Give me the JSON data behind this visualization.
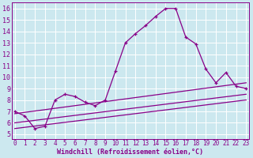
{
  "bg_color": "#cce8ef",
  "line_color": "#880088",
  "grid_color": "#ffffff",
  "xlabel": "Windchill (Refroidissement éolien,°C)",
  "xlabel_color": "#880088",
  "xticks": [
    0,
    1,
    2,
    3,
    4,
    5,
    6,
    7,
    8,
    9,
    10,
    11,
    12,
    13,
    14,
    15,
    16,
    17,
    18,
    19,
    20,
    21,
    22,
    23
  ],
  "yticks": [
    5,
    6,
    7,
    8,
    9,
    10,
    11,
    12,
    13,
    14,
    15,
    16
  ],
  "xlim": [
    -0.3,
    23.3
  ],
  "ylim": [
    4.6,
    16.5
  ],
  "series1_x": [
    0,
    1,
    2,
    3,
    4,
    5,
    6,
    7,
    8,
    9,
    10,
    11,
    12,
    13,
    14,
    15,
    16,
    17,
    18,
    19,
    20,
    21,
    22,
    23
  ],
  "series1_y": [
    7.0,
    6.6,
    5.5,
    5.7,
    8.0,
    8.5,
    8.3,
    7.8,
    7.5,
    8.0,
    10.5,
    13.0,
    13.8,
    14.5,
    15.3,
    16.0,
    16.0,
    13.5,
    12.9,
    10.7,
    9.5,
    10.4,
    9.2,
    9.0
  ],
  "series2_x": [
    0,
    23
  ],
  "series2_y": [
    6.8,
    9.5
  ],
  "series3_x": [
    0,
    23
  ],
  "series3_y": [
    6.0,
    8.5
  ],
  "series4_x": [
    0,
    23
  ],
  "series4_y": [
    5.5,
    8.0
  ],
  "tick_fontsize": 5.5,
  "xlabel_fontsize": 6.0
}
